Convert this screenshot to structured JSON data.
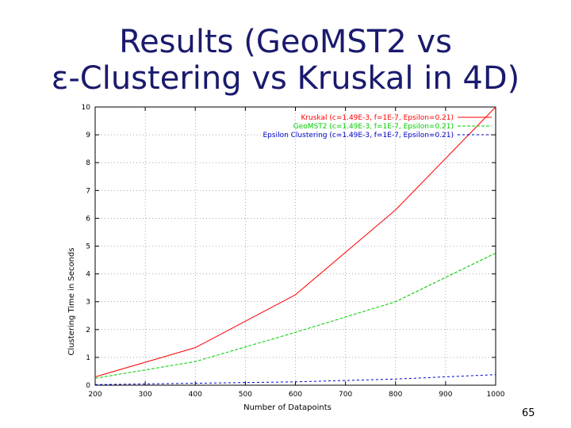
{
  "slide": {
    "title_line1": "Results (GeoMST2 vs",
    "title_line2": "ε-Clustering vs Kruskal in 4D)",
    "page_number": "65"
  },
  "chart_data": {
    "type": "line",
    "xlabel": "Number of Datapoints",
    "ylabel": "Clustering Time in Seconds",
    "xlim": [
      200,
      1000
    ],
    "ylim": [
      0,
      10
    ],
    "xticks": [
      200,
      300,
      400,
      500,
      600,
      700,
      800,
      900,
      1000
    ],
    "yticks": [
      0,
      1,
      2,
      3,
      4,
      5,
      6,
      7,
      8,
      9,
      10
    ],
    "grid": true,
    "legend_position": "top-right",
    "series": [
      {
        "name": "Kruskal (c=1.49E-3, f=1E-7, Epsilon=0.21)",
        "color": "#ff0000",
        "dash": "solid",
        "x": [
          200,
          400,
          600,
          800,
          1000
        ],
        "y": [
          0.3,
          1.35,
          3.25,
          6.3,
          10.0
        ]
      },
      {
        "name": "GeoMST2 (c=1.49E-3, f=1E-7, Epsilon=0.21)",
        "color": "#00cc00",
        "dash": "dashed",
        "x": [
          200,
          400,
          600,
          800,
          1000
        ],
        "y": [
          0.25,
          0.85,
          1.9,
          3.0,
          4.75
        ]
      },
      {
        "name": "Epsilon Clustering (c=1.49E-3, f=1E-7, Epsilon=0.21)",
        "color": "#0000cc",
        "dash": "dashed",
        "x": [
          200,
          400,
          600,
          800,
          1000
        ],
        "y": [
          0.02,
          0.07,
          0.12,
          0.22,
          0.38
        ]
      }
    ]
  }
}
